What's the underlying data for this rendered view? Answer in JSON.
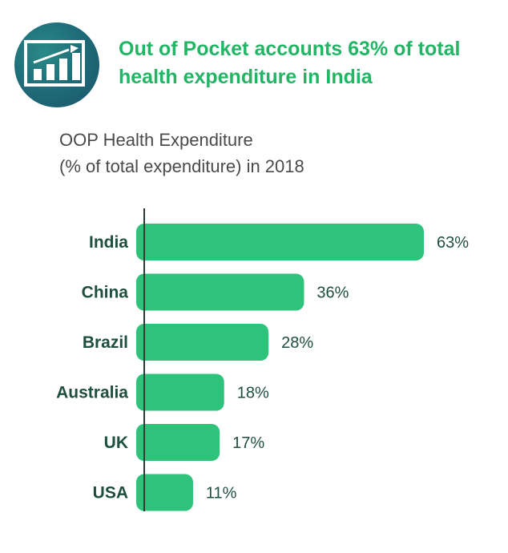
{
  "header": {
    "title_line1": "Out of Pocket accounts 63% of total",
    "title_line2": "health expenditure in India",
    "icon": "growth-chart-icon",
    "badge_color": "#1f6e7a",
    "accent_color": "#22b566"
  },
  "chart_data": {
    "type": "bar",
    "orientation": "horizontal",
    "title": "OOP Health Expenditure",
    "subtitle": "(% of total expenditure) in 2018",
    "categories": [
      "India",
      "China",
      "Brazil",
      "Australia",
      "UK",
      "USA"
    ],
    "values": [
      63,
      36,
      28,
      18,
      17,
      11
    ],
    "value_labels": [
      "63%",
      "36%",
      "28%",
      "18%",
      "17%",
      "11%"
    ],
    "xlim": [
      0,
      63
    ],
    "bar_color": "#2fc27a",
    "grid": false
  }
}
